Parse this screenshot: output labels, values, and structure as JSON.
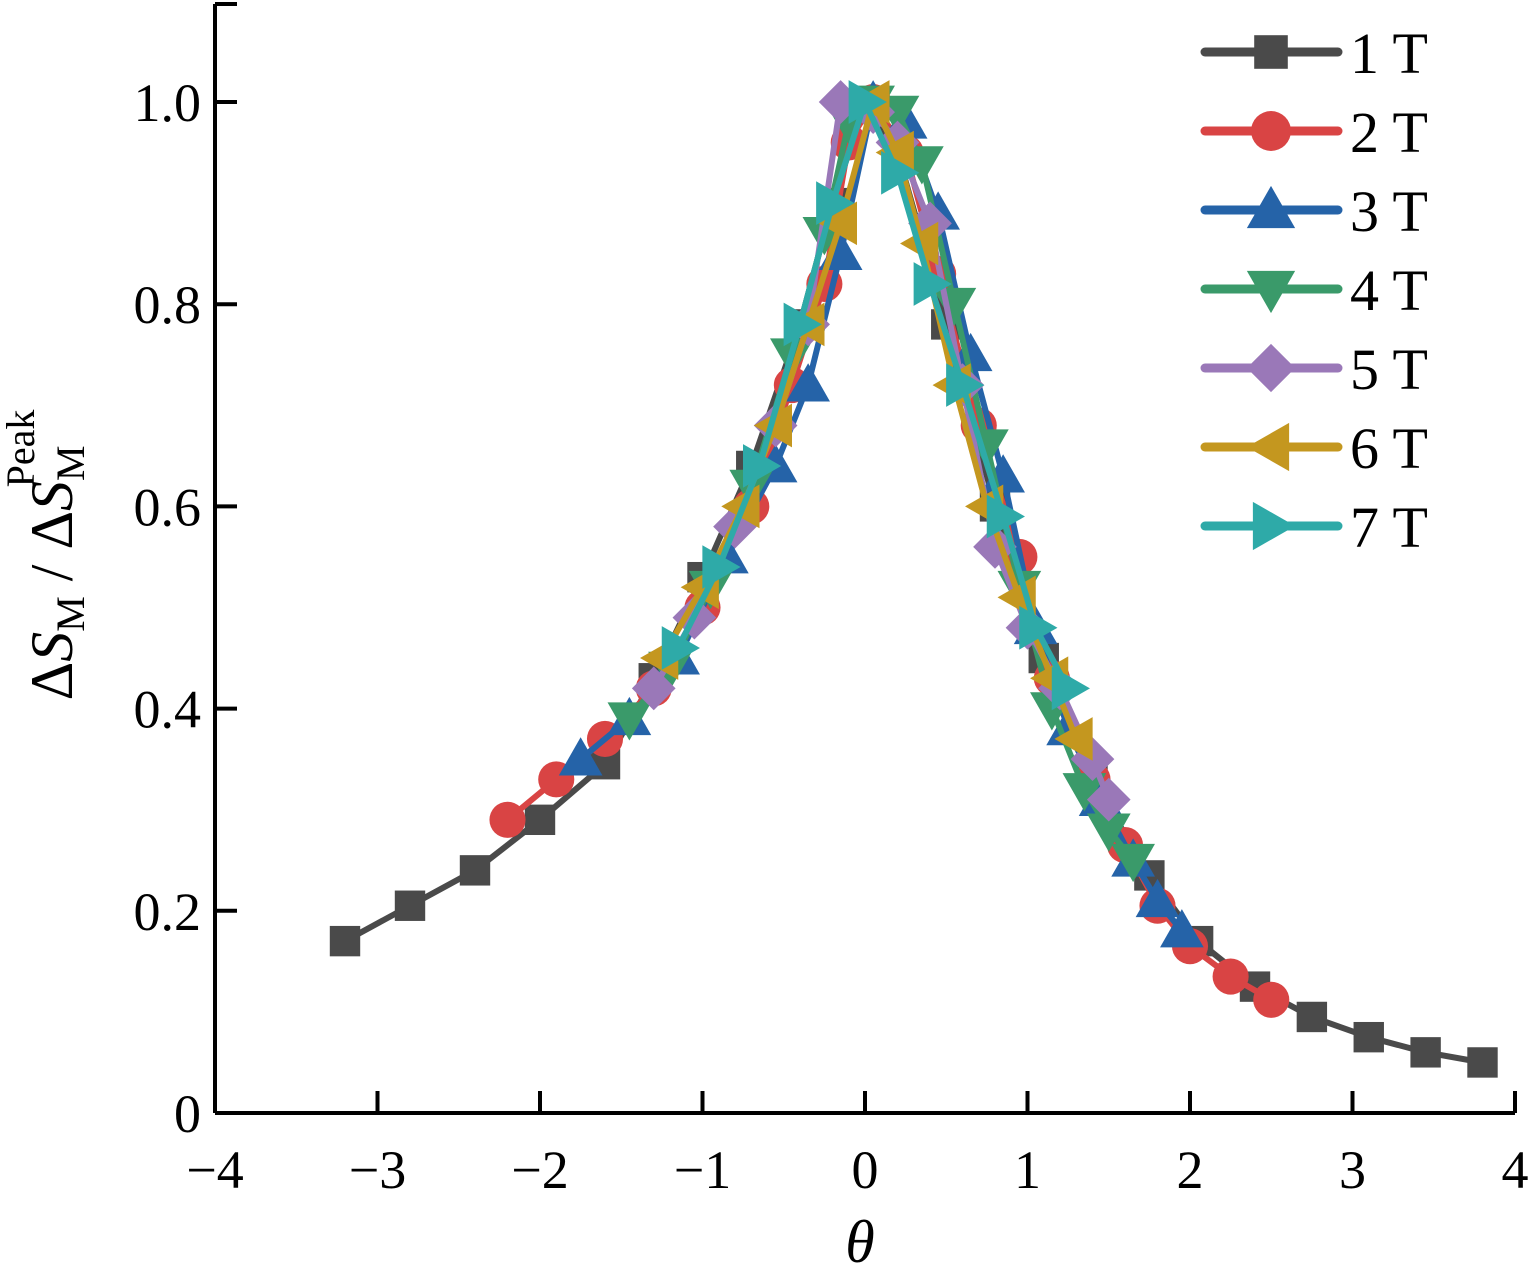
{
  "chart_data": {
    "type": "line",
    "title": "",
    "xlabel": "θ",
    "ylabel": {
      "delta": "Δ",
      "s": "S",
      "sub": "M",
      "slash": " / ",
      "sup": "Peak"
    },
    "xlim": [
      -4,
      4
    ],
    "ylim": [
      0,
      1.1
    ],
    "x_ticks": [
      -4,
      -3,
      -2,
      -1,
      0,
      1,
      2,
      3,
      4
    ],
    "x_tick_labels": [
      "−4",
      "−3",
      "−2",
      "−1",
      "0",
      "1",
      "2",
      "3",
      "4"
    ],
    "y_ticks": [
      0,
      0.2,
      0.4,
      0.6,
      0.8,
      1.0
    ],
    "y_tick_labels": [
      "0",
      "0.2",
      "0.4",
      "0.6",
      "0.8",
      "1.0"
    ],
    "grid": false,
    "legend_position": "top-right",
    "series": [
      {
        "name": "1 T",
        "color": "#4a4a4a",
        "marker": "square",
        "x": [
          -3.2,
          -2.8,
          -2.4,
          -2.0,
          -1.6,
          -1.3,
          -1.0,
          -0.7,
          -0.4,
          -0.2,
          0.0,
          0.2,
          0.5,
          0.8,
          1.1,
          1.4,
          1.75,
          2.05,
          2.4,
          2.75,
          3.1,
          3.45,
          3.8
        ],
        "y": [
          0.17,
          0.205,
          0.24,
          0.29,
          0.345,
          0.43,
          0.53,
          0.64,
          0.78,
          0.9,
          1.0,
          0.95,
          0.78,
          0.6,
          0.45,
          0.33,
          0.235,
          0.17,
          0.125,
          0.095,
          0.075,
          0.06,
          0.05
        ]
      },
      {
        "name": "2 T",
        "color": "#d94444",
        "marker": "circle",
        "x": [
          -2.2,
          -1.9,
          -1.6,
          -1.3,
          -1.0,
          -0.7,
          -0.45,
          -0.25,
          -0.1,
          0.05,
          0.25,
          0.45,
          0.7,
          0.95,
          1.15,
          1.4,
          1.6,
          1.8,
          2.0,
          2.25,
          2.5
        ],
        "y": [
          0.29,
          0.33,
          0.37,
          0.42,
          0.5,
          0.6,
          0.72,
          0.82,
          0.96,
          1.0,
          0.95,
          0.83,
          0.68,
          0.55,
          0.43,
          0.33,
          0.265,
          0.205,
          0.165,
          0.135,
          0.112
        ]
      },
      {
        "name": "3 T",
        "color": "#2563a8",
        "marker": "triangle-up",
        "x": [
          -1.75,
          -1.45,
          -1.15,
          -0.85,
          -0.55,
          -0.35,
          -0.15,
          0.05,
          0.25,
          0.45,
          0.65,
          0.85,
          1.05,
          1.25,
          1.45,
          1.65,
          1.8,
          1.95
        ],
        "y": [
          0.35,
          0.39,
          0.45,
          0.55,
          0.64,
          0.72,
          0.85,
          1.0,
          0.98,
          0.89,
          0.75,
          0.63,
          0.48,
          0.38,
          0.31,
          0.25,
          0.21,
          0.18
        ]
      },
      {
        "name": "4 T",
        "color": "#3a9a6a",
        "marker": "triangle-down",
        "x": [
          -1.45,
          -1.2,
          -0.95,
          -0.7,
          -0.45,
          -0.25,
          -0.1,
          0.05,
          0.2,
          0.35,
          0.55,
          0.75,
          0.95,
          1.15,
          1.35,
          1.5,
          1.65
        ],
        "y": [
          0.39,
          0.44,
          0.52,
          0.62,
          0.75,
          0.87,
          0.98,
          1.0,
          0.99,
          0.94,
          0.8,
          0.66,
          0.52,
          0.4,
          0.32,
          0.28,
          0.25
        ]
      },
      {
        "name": "5 T",
        "color": "#9a78b8",
        "marker": "diamond",
        "x": [
          -1.3,
          -1.05,
          -0.8,
          -0.55,
          -0.35,
          -0.15,
          0.05,
          0.2,
          0.4,
          0.6,
          0.8,
          1.0,
          1.2,
          1.4,
          1.5
        ],
        "y": [
          0.42,
          0.49,
          0.58,
          0.68,
          0.78,
          1.0,
          0.99,
          0.96,
          0.88,
          0.72,
          0.56,
          0.48,
          0.42,
          0.35,
          0.31
        ]
      },
      {
        "name": "6 T",
        "color": "#c4971f",
        "marker": "triangle-left",
        "x": [
          -1.25,
          -1.0,
          -0.75,
          -0.55,
          -0.35,
          -0.15,
          0.05,
          0.2,
          0.35,
          0.55,
          0.75,
          0.95,
          1.15,
          1.3
        ],
        "y": [
          0.45,
          0.52,
          0.6,
          0.68,
          0.78,
          0.88,
          1.0,
          0.95,
          0.86,
          0.72,
          0.6,
          0.51,
          0.43,
          0.37
        ]
      },
      {
        "name": "7 T",
        "color": "#2eaaa8",
        "marker": "triangle-right",
        "x": [
          -1.15,
          -0.9,
          -0.65,
          -0.4,
          -0.2,
          0.0,
          0.2,
          0.4,
          0.6,
          0.85,
          1.05,
          1.25
        ],
        "y": [
          0.46,
          0.54,
          0.64,
          0.78,
          0.9,
          1.0,
          0.93,
          0.82,
          0.72,
          0.59,
          0.48,
          0.42
        ]
      }
    ]
  }
}
